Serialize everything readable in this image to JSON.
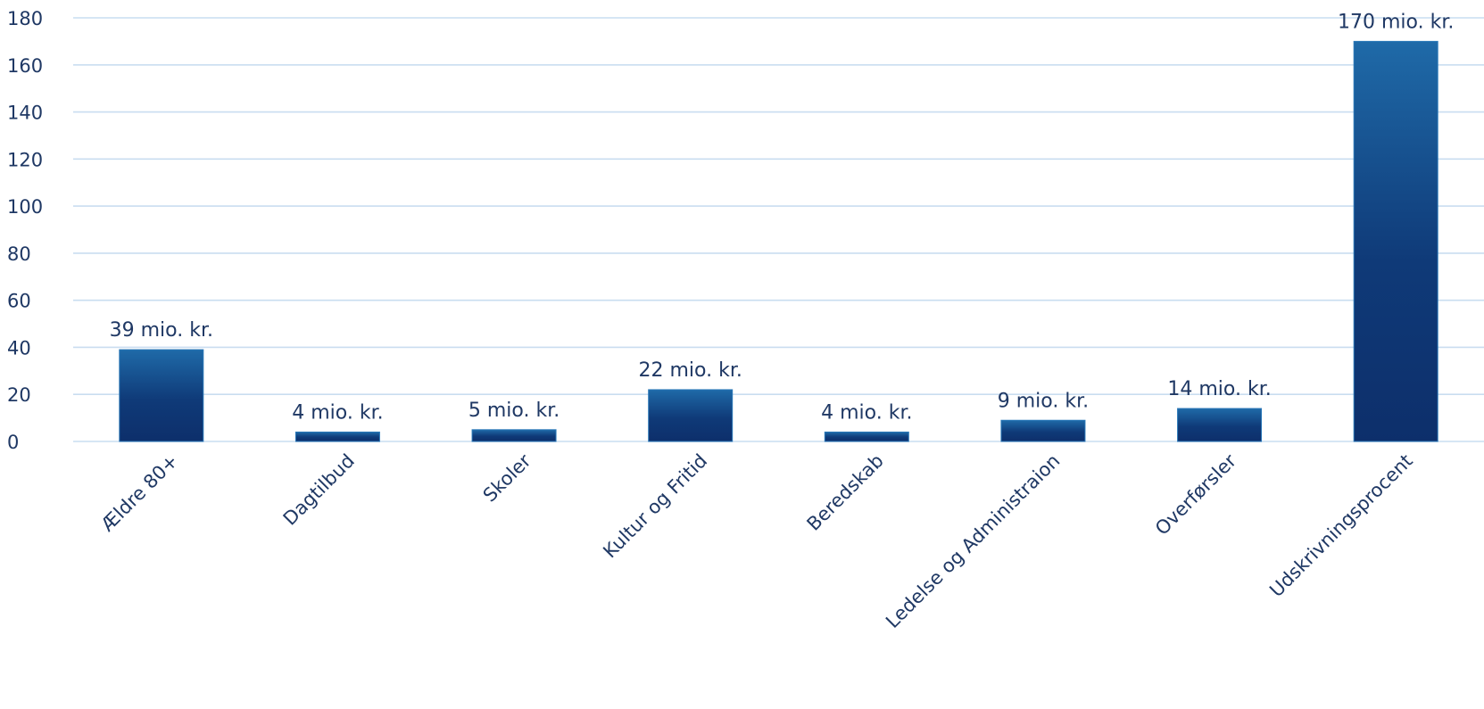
{
  "chart_data": {
    "type": "bar",
    "title": "",
    "xlabel": "",
    "ylabel": "",
    "categories": [
      "Ældre 80+",
      "Dagtilbud",
      "Skoler",
      "Kultur og Fritid",
      "Beredskab",
      "Ledelse og Administraion",
      "Overførsler",
      "Udskrivningsprocent"
    ],
    "values": [
      39,
      4,
      5,
      22,
      4,
      9,
      14,
      170
    ],
    "data_labels": [
      "39 mio. kr.",
      "4 mio. kr.",
      "5 mio. kr.",
      "22 mio. kr.",
      "4 mio. kr.",
      "9 mio. kr.",
      "14 mio. kr.",
      "170 mio. kr."
    ],
    "ylim": [
      0,
      180
    ],
    "yticks": [
      0,
      20,
      40,
      60,
      80,
      100,
      120,
      140,
      160,
      180
    ],
    "grid": true,
    "legend": "none",
    "colors": {
      "bar_top": "#1f6aa8",
      "bar_bottom": "#0d2f6b",
      "text": "#1f3864",
      "grid": "#c9ddf0"
    }
  }
}
